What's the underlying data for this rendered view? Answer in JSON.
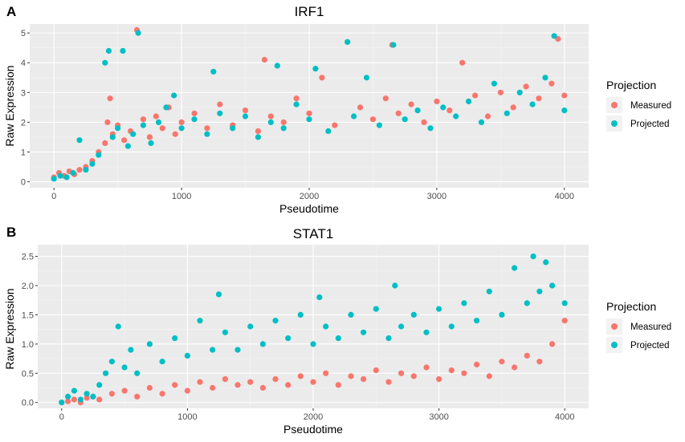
{
  "chart_data": [
    {
      "type": "scatter",
      "panel_label": "A",
      "title": "IRF1",
      "xlabel": "Pseudotime",
      "ylabel": "Raw Expression",
      "xlim": [
        -190,
        4190
      ],
      "ylim": [
        -0.2,
        5.3
      ],
      "xticks": [
        0,
        1000,
        2000,
        3000,
        4000
      ],
      "yticks": [
        0,
        1,
        2,
        3,
        4,
        5
      ],
      "grid": true,
      "legend": {
        "title": "Projection",
        "position": "right"
      },
      "series": [
        {
          "name": "Measured",
          "color": "#F8766D",
          "points": [
            [
              0,
              0.15
            ],
            [
              40,
              0.3
            ],
            [
              80,
              0.2
            ],
            [
              120,
              0.35
            ],
            [
              160,
              0.25
            ],
            [
              200,
              0.4
            ],
            [
              250,
              0.5
            ],
            [
              300,
              0.7
            ],
            [
              350,
              1.0
            ],
            [
              400,
              1.3
            ],
            [
              420,
              2.0
            ],
            [
              440,
              2.8
            ],
            [
              460,
              1.6
            ],
            [
              500,
              1.9
            ],
            [
              550,
              1.4
            ],
            [
              600,
              1.7
            ],
            [
              650,
              5.1
            ],
            [
              700,
              2.1
            ],
            [
              750,
              1.5
            ],
            [
              800,
              2.2
            ],
            [
              850,
              1.8
            ],
            [
              900,
              2.5
            ],
            [
              950,
              1.6
            ],
            [
              1000,
              2.0
            ],
            [
              1100,
              2.3
            ],
            [
              1200,
              1.8
            ],
            [
              1300,
              2.6
            ],
            [
              1400,
              1.9
            ],
            [
              1500,
              2.4
            ],
            [
              1600,
              1.7
            ],
            [
              1650,
              4.1
            ],
            [
              1700,
              2.2
            ],
            [
              1800,
              2.0
            ],
            [
              1900,
              2.8
            ],
            [
              2000,
              2.3
            ],
            [
              2100,
              3.5
            ],
            [
              2200,
              1.9
            ],
            [
              2300,
              4.7
            ],
            [
              2400,
              2.5
            ],
            [
              2500,
              2.1
            ],
            [
              2600,
              2.8
            ],
            [
              2650,
              4.6
            ],
            [
              2700,
              2.3
            ],
            [
              2800,
              2.6
            ],
            [
              2900,
              2.0
            ],
            [
              3000,
              2.7
            ],
            [
              3100,
              2.4
            ],
            [
              3200,
              4.0
            ],
            [
              3300,
              2.9
            ],
            [
              3400,
              2.2
            ],
            [
              3500,
              3.0
            ],
            [
              3600,
              2.5
            ],
            [
              3700,
              3.2
            ],
            [
              3800,
              2.8
            ],
            [
              3900,
              3.3
            ],
            [
              3950,
              4.8
            ],
            [
              4000,
              2.9
            ]
          ]
        },
        {
          "name": "Projected",
          "color": "#00BFC4",
          "points": [
            [
              0,
              0.1
            ],
            [
              50,
              0.2
            ],
            [
              100,
              0.15
            ],
            [
              150,
              0.3
            ],
            [
              200,
              1.4
            ],
            [
              250,
              0.4
            ],
            [
              300,
              0.6
            ],
            [
              350,
              0.9
            ],
            [
              400,
              4.0
            ],
            [
              430,
              4.4
            ],
            [
              460,
              1.5
            ],
            [
              500,
              1.8
            ],
            [
              540,
              4.4
            ],
            [
              580,
              1.2
            ],
            [
              620,
              1.6
            ],
            [
              660,
              5.0
            ],
            [
              700,
              1.9
            ],
            [
              760,
              1.3
            ],
            [
              820,
              2.0
            ],
            [
              880,
              2.5
            ],
            [
              940,
              2.9
            ],
            [
              1000,
              1.8
            ],
            [
              1100,
              2.1
            ],
            [
              1200,
              1.6
            ],
            [
              1250,
              3.7
            ],
            [
              1300,
              2.3
            ],
            [
              1400,
              1.8
            ],
            [
              1500,
              2.2
            ],
            [
              1600,
              1.5
            ],
            [
              1700,
              2.0
            ],
            [
              1750,
              3.9
            ],
            [
              1800,
              1.8
            ],
            [
              1900,
              2.6
            ],
            [
              2000,
              2.1
            ],
            [
              2050,
              3.8
            ],
            [
              2150,
              1.7
            ],
            [
              2300,
              4.7
            ],
            [
              2350,
              2.2
            ],
            [
              2450,
              3.5
            ],
            [
              2550,
              1.9
            ],
            [
              2660,
              4.6
            ],
            [
              2750,
              2.1
            ],
            [
              2850,
              2.4
            ],
            [
              2950,
              1.8
            ],
            [
              3050,
              2.5
            ],
            [
              3150,
              2.2
            ],
            [
              3250,
              2.7
            ],
            [
              3350,
              2.0
            ],
            [
              3450,
              3.3
            ],
            [
              3550,
              2.3
            ],
            [
              3650,
              3.0
            ],
            [
              3750,
              2.6
            ],
            [
              3850,
              3.5
            ],
            [
              3920,
              4.9
            ],
            [
              4000,
              2.4
            ]
          ]
        }
      ]
    },
    {
      "type": "scatter",
      "panel_label": "B",
      "title": "STAT1",
      "xlabel": "Pseudotime",
      "ylabel": "Raw Expression",
      "xlim": [
        -190,
        4190
      ],
      "ylim": [
        -0.1,
        2.7
      ],
      "xticks": [
        0,
        1000,
        2000,
        3000,
        4000
      ],
      "yticks": [
        0.0,
        0.5,
        1.0,
        1.5,
        2.0,
        2.5
      ],
      "ytick_labels": [
        "0.0",
        "0.5",
        "1.0",
        "1.5",
        "2.0",
        "2.5"
      ],
      "grid": true,
      "legend": {
        "title": "Projection",
        "position": "right"
      },
      "series": [
        {
          "name": "Measured",
          "color": "#F8766D",
          "points": [
            [
              0,
              0.0
            ],
            [
              50,
              0.02
            ],
            [
              100,
              0.05
            ],
            [
              150,
              0.0
            ],
            [
              200,
              0.08
            ],
            [
              250,
              0.1
            ],
            [
              300,
              0.05
            ],
            [
              400,
              0.15
            ],
            [
              500,
              0.2
            ],
            [
              600,
              0.1
            ],
            [
              700,
              0.25
            ],
            [
              800,
              0.15
            ],
            [
              900,
              0.3
            ],
            [
              1000,
              0.2
            ],
            [
              1100,
              0.35
            ],
            [
              1200,
              0.25
            ],
            [
              1300,
              0.4
            ],
            [
              1400,
              0.3
            ],
            [
              1500,
              0.35
            ],
            [
              1600,
              0.25
            ],
            [
              1700,
              0.4
            ],
            [
              1800,
              0.3
            ],
            [
              1900,
              0.45
            ],
            [
              2000,
              0.35
            ],
            [
              2100,
              0.5
            ],
            [
              2200,
              0.3
            ],
            [
              2300,
              0.45
            ],
            [
              2400,
              0.4
            ],
            [
              2500,
              0.55
            ],
            [
              2600,
              0.35
            ],
            [
              2700,
              0.5
            ],
            [
              2800,
              0.45
            ],
            [
              2900,
              0.6
            ],
            [
              3000,
              0.4
            ],
            [
              3100,
              0.55
            ],
            [
              3200,
              0.5
            ],
            [
              3300,
              0.65
            ],
            [
              3400,
              0.45
            ],
            [
              3500,
              0.7
            ],
            [
              3600,
              0.6
            ],
            [
              3700,
              0.8
            ],
            [
              3800,
              0.7
            ],
            [
              3900,
              1.0
            ],
            [
              4000,
              1.4
            ]
          ]
        },
        {
          "name": "Projected",
          "color": "#00BFC4",
          "points": [
            [
              0,
              0.0
            ],
            [
              50,
              0.1
            ],
            [
              100,
              0.2
            ],
            [
              150,
              0.05
            ],
            [
              200,
              0.15
            ],
            [
              250,
              0.1
            ],
            [
              300,
              0.3
            ],
            [
              350,
              0.5
            ],
            [
              400,
              0.7
            ],
            [
              450,
              1.3
            ],
            [
              500,
              0.6
            ],
            [
              550,
              0.9
            ],
            [
              600,
              0.5
            ],
            [
              700,
              1.0
            ],
            [
              800,
              0.7
            ],
            [
              900,
              1.1
            ],
            [
              1000,
              0.8
            ],
            [
              1100,
              1.4
            ],
            [
              1200,
              0.9
            ],
            [
              1250,
              1.85
            ],
            [
              1300,
              1.2
            ],
            [
              1400,
              0.9
            ],
            [
              1500,
              1.3
            ],
            [
              1600,
              1.0
            ],
            [
              1700,
              1.4
            ],
            [
              1800,
              1.1
            ],
            [
              1900,
              1.5
            ],
            [
              2000,
              1.0
            ],
            [
              2050,
              1.8
            ],
            [
              2100,
              1.3
            ],
            [
              2200,
              1.1
            ],
            [
              2300,
              1.5
            ],
            [
              2400,
              1.2
            ],
            [
              2500,
              1.6
            ],
            [
              2600,
              1.1
            ],
            [
              2650,
              2.0
            ],
            [
              2700,
              1.3
            ],
            [
              2800,
              1.5
            ],
            [
              2900,
              1.2
            ],
            [
              3000,
              1.6
            ],
            [
              3100,
              1.3
            ],
            [
              3200,
              1.7
            ],
            [
              3300,
              1.4
            ],
            [
              3400,
              1.9
            ],
            [
              3500,
              1.5
            ],
            [
              3600,
              2.3
            ],
            [
              3700,
              1.7
            ],
            [
              3750,
              2.5
            ],
            [
              3800,
              1.9
            ],
            [
              3850,
              2.4
            ],
            [
              3900,
              2.0
            ],
            [
              4000,
              1.7
            ]
          ]
        }
      ]
    }
  ]
}
